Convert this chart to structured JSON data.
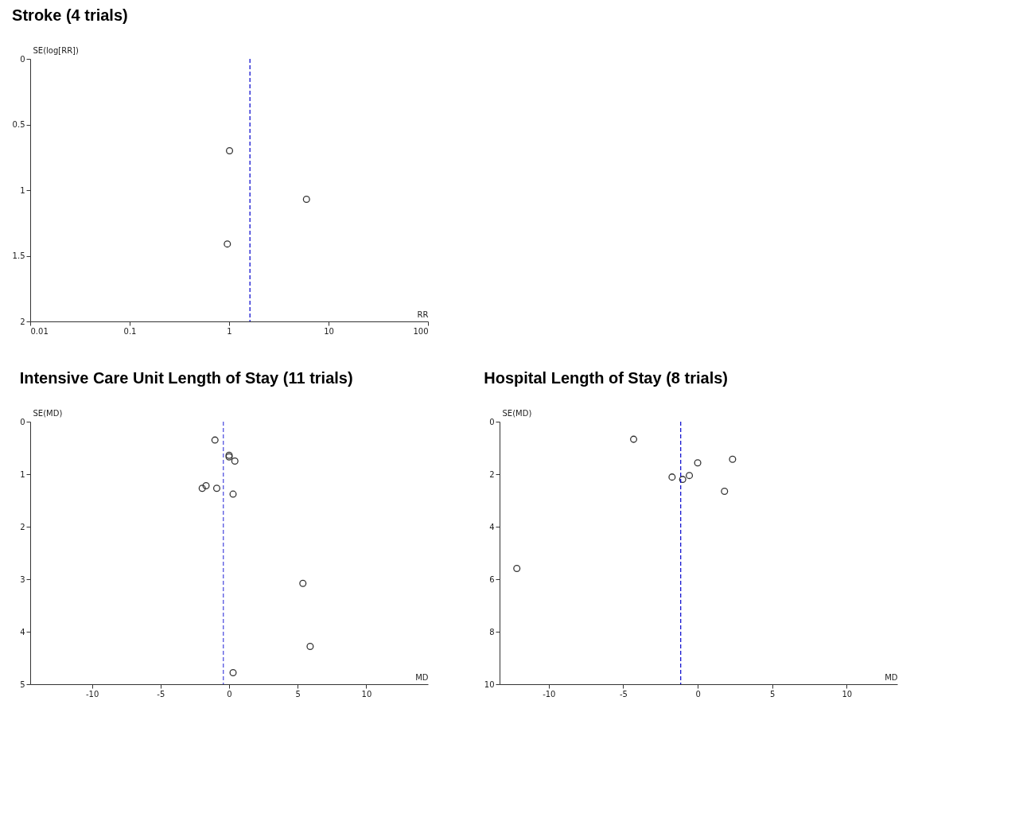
{
  "chart_data": [
    {
      "type": "scatter",
      "title": "Stroke (4 trials)",
      "xlabel": "RR",
      "ylabel": "SE(log[RR])",
      "log": "x",
      "marker": "circle",
      "x": [
        1.01,
        0.96,
        6.0
      ],
      "series": [
        {
          "color": "#333333",
          "values": [
            0.7,
            1.41,
            1.07
          ]
        }
      ],
      "xlim": [
        0.01,
        100
      ],
      "xticks": [
        0.01,
        0.1,
        1,
        10,
        100
      ],
      "ylim": [
        2,
        0
      ],
      "yticks": [
        0,
        0.5,
        1,
        1.5,
        2
      ],
      "ref_lines": [
        {
          "axis": "x",
          "value": 1.62,
          "color": "#0000cc",
          "line_style": "dashed"
        }
      ]
    },
    {
      "type": "scatter",
      "title": "Intensive Care Unit Length of Stay (11 trials)",
      "xlabel": "MD",
      "ylabel": "SE(MD)",
      "marker": "circle",
      "x": [
        -1.03,
        0.0,
        0.0,
        0.42,
        -1.96,
        -1.68,
        -0.9,
        0.29,
        5.38,
        5.91,
        0.29
      ],
      "series": [
        {
          "color": "#333333",
          "values": [
            0.35,
            0.64,
            0.67,
            0.75,
            1.27,
            1.22,
            1.27,
            1.38,
            3.08,
            4.28,
            4.78
          ]
        }
      ],
      "xlim": [
        -14.5,
        14.5
      ],
      "xticks": [
        -10,
        -5,
        0,
        5,
        10
      ],
      "ylim": [
        5,
        0
      ],
      "yticks": [
        0,
        1,
        2,
        3,
        4,
        5
      ],
      "ref_lines": [
        {
          "axis": "x",
          "value": -0.42,
          "color": "#4444dd",
          "line_style": "dashed"
        }
      ]
    },
    {
      "type": "scatter",
      "title": "Hospital Length of Stay (8 trials)",
      "xlabel": "MD",
      "ylabel": "SE(MD)",
      "marker": "circle",
      "x": [
        -4.3,
        -1.72,
        -1.01,
        -0.56,
        0.0,
        2.34,
        1.8,
        -12.14
      ],
      "series": [
        {
          "color": "#333333",
          "values": [
            0.67,
            2.11,
            2.2,
            2.05,
            1.57,
            1.43,
            2.65,
            5.59
          ]
        }
      ],
      "xlim": [
        -13.3,
        13.4
      ],
      "xticks": [
        -10,
        -5,
        0,
        5,
        10
      ],
      "ylim": [
        10,
        0
      ],
      "yticks": [
        0,
        2,
        4,
        6,
        8,
        10
      ],
      "ref_lines": [
        {
          "axis": "x",
          "value": -1.14,
          "color": "#0000cc",
          "line_style": "dashed"
        }
      ]
    }
  ]
}
